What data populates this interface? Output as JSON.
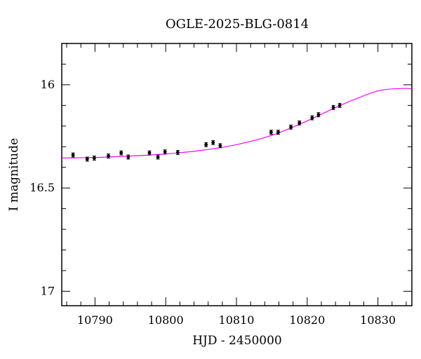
{
  "chart_data": {
    "type": "scatter",
    "title": "OGLE-2025-BLG-0814",
    "xlabel": "HJD - 2450000",
    "ylabel": "I magnitude",
    "xlim": [
      10785.3,
      10834.8
    ],
    "ylim": [
      17.07,
      15.8
    ],
    "y_inverted": true,
    "grid": false,
    "x_ticks": [
      10790,
      10800,
      10810,
      10820,
      10830
    ],
    "y_ticks": [
      16,
      16.5,
      17
    ],
    "y_tick_labels": [
      "16",
      "16.5",
      "17"
    ],
    "series": [
      {
        "kind": "points_with_errorbars",
        "color": "#000000",
        "x": [
          10786.9,
          10788.9,
          10789.9,
          10791.9,
          10793.7,
          10794.7,
          10797.7,
          10798.9,
          10799.9,
          10801.7,
          10805.7,
          10806.7,
          10807.7,
          10814.9,
          10815.9,
          10817.7,
          10818.9,
          10820.7,
          10821.6,
          10823.7,
          10824.6
        ],
        "y": [
          16.34,
          16.36,
          16.355,
          16.345,
          16.33,
          16.35,
          16.33,
          16.35,
          16.325,
          16.328,
          16.29,
          16.28,
          16.295,
          16.23,
          16.23,
          16.205,
          16.185,
          16.16,
          16.145,
          16.11,
          16.1
        ],
        "err": [
          0.01,
          0.01,
          0.01,
          0.01,
          0.01,
          0.01,
          0.01,
          0.01,
          0.01,
          0.01,
          0.01,
          0.01,
          0.01,
          0.01,
          0.01,
          0.01,
          0.01,
          0.01,
          0.01,
          0.01,
          0.01
        ]
      },
      {
        "kind": "model_curve",
        "color": "#ff00ff",
        "x": [
          10785.3,
          10790,
          10795,
          10800,
          10805,
          10810,
          10815,
          10820,
          10825,
          10830,
          10833.5,
          10834.8
        ],
        "y": [
          16.355,
          16.352,
          16.345,
          16.335,
          16.318,
          16.29,
          16.245,
          16.175,
          16.095,
          16.03,
          16.018,
          16.02
        ]
      }
    ]
  }
}
